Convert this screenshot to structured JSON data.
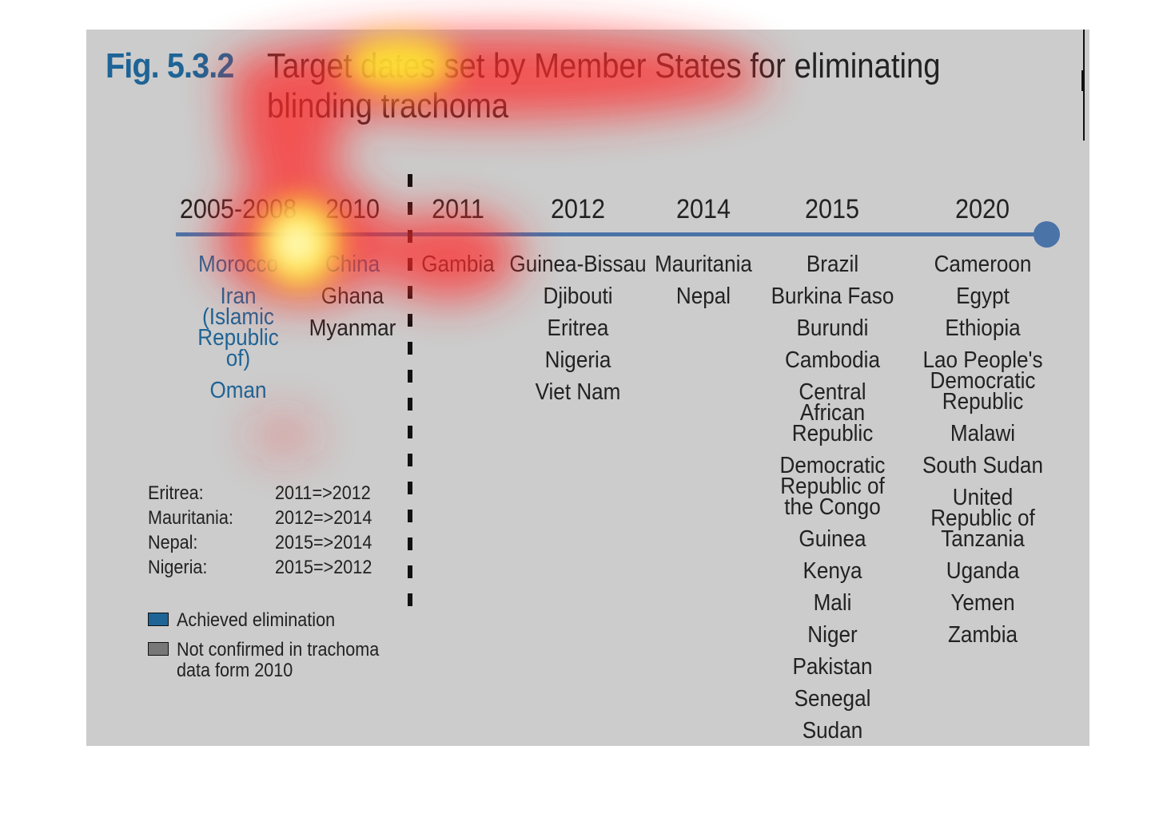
{
  "figure": {
    "number": "Fig. 5.3.2",
    "title": "Target dates set by Member States for eliminating blinding trachoma"
  },
  "colors": {
    "achieved": "#1e6496",
    "default_text": "#222222",
    "timeline": "#4a73a8",
    "achieved_swatch": "#1e6496",
    "not_confirmed_swatch": "#777777"
  },
  "timeline": {
    "periods": [
      {
        "year": "2005-2008",
        "countries": [
          {
            "name": "Morocco",
            "achieved": true
          },
          {
            "name": "Iran (Islamic Republic of)",
            "achieved": true
          },
          {
            "name": "Oman",
            "achieved": true
          }
        ]
      },
      {
        "year": "2010",
        "countries": [
          {
            "name": "China",
            "achieved": true
          },
          {
            "name": "Ghana",
            "achieved": false
          },
          {
            "name": "Myanmar",
            "achieved": false
          }
        ]
      },
      {
        "year": "2011",
        "countries": [
          {
            "name": "Gambia",
            "achieved": false
          }
        ]
      },
      {
        "year": "2012",
        "countries": [
          {
            "name": "Guinea-Bissau",
            "achieved": false
          },
          {
            "name": "Djibouti",
            "achieved": false
          },
          {
            "name": "Eritrea",
            "achieved": false
          },
          {
            "name": "Nigeria",
            "achieved": false
          },
          {
            "name": "Viet Nam",
            "achieved": false
          }
        ]
      },
      {
        "year": "2014",
        "countries": [
          {
            "name": "Mauritania",
            "achieved": false
          },
          {
            "name": "Nepal",
            "achieved": false
          }
        ]
      },
      {
        "year": "2015",
        "countries": [
          {
            "name": "Brazil",
            "achieved": false
          },
          {
            "name": "Burkina Faso",
            "achieved": false
          },
          {
            "name": "Burundi",
            "achieved": false
          },
          {
            "name": "Cambodia",
            "achieved": false
          },
          {
            "name": "Central African Republic",
            "achieved": false
          },
          {
            "name": "Democratic Republic of the Congo",
            "achieved": false
          },
          {
            "name": "Guinea",
            "achieved": false
          },
          {
            "name": "Kenya",
            "achieved": false
          },
          {
            "name": "Mali",
            "achieved": false
          },
          {
            "name": "Niger",
            "achieved": false
          },
          {
            "name": "Pakistan",
            "achieved": false
          },
          {
            "name": "Senegal",
            "achieved": false
          },
          {
            "name": "Sudan",
            "achieved": false
          }
        ]
      },
      {
        "year": "2020",
        "countries": [
          {
            "name": "Cameroon",
            "achieved": false
          },
          {
            "name": "Egypt",
            "achieved": false
          },
          {
            "name": "Ethiopia",
            "achieved": false
          },
          {
            "name": "Lao People's Democratic Republic",
            "achieved": false
          },
          {
            "name": "Malawi",
            "achieved": false
          },
          {
            "name": "South Sudan",
            "achieved": false
          },
          {
            "name": "United Republic of Tanzania",
            "achieved": false
          },
          {
            "name": "Uganda",
            "achieved": false
          },
          {
            "name": "Yemen",
            "achieved": false
          },
          {
            "name": "Zambia",
            "achieved": false
          }
        ]
      }
    ]
  },
  "date_changes": [
    {
      "country": "Eritrea:",
      "change": "2011=>2012"
    },
    {
      "country": "Mauritania:",
      "change": "2012=>2014"
    },
    {
      "country": "Nepal:",
      "change": "2015=>2014"
    },
    {
      "country": "Nigeria:",
      "change": "2015=>2012"
    }
  ],
  "legend": {
    "achieved_label": "Achieved elimination",
    "not_confirmed_label": "Not confirmed in trachoma data form 2010"
  }
}
